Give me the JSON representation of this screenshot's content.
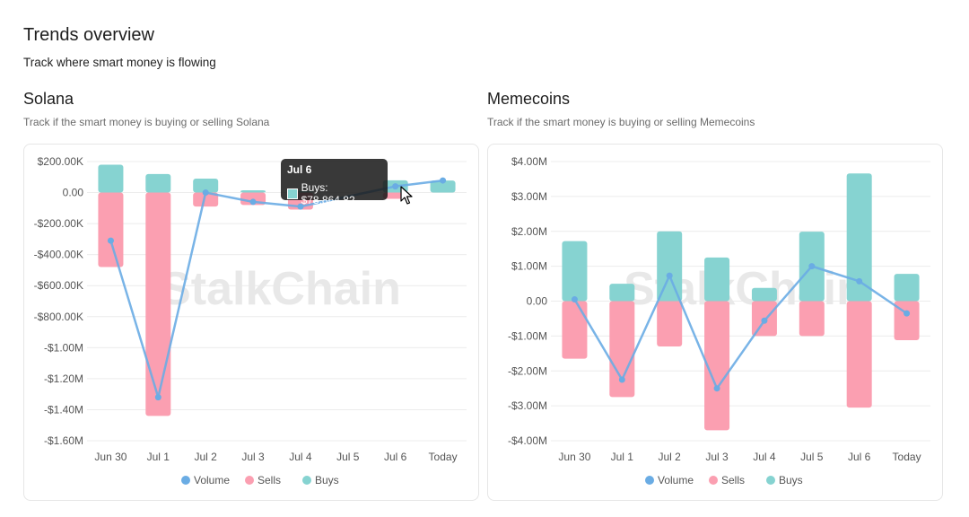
{
  "page": {
    "title": "Trends overview",
    "subtitle": "Track where smart money is flowing"
  },
  "watermark": "StalkChain",
  "colors": {
    "buys": "#86d3d1",
    "sells": "#fb9fb1",
    "volume": "#6aace4"
  },
  "panels": [
    {
      "title": "Solana",
      "subtitle": "Track if the smart money is buying or selling Solana",
      "tooltip": {
        "title": "Jul 6",
        "label": "Buys: $78,864.82"
      }
    },
    {
      "title": "Memecoins",
      "subtitle": "Track if the smart money is buying or selling Memecoins"
    }
  ],
  "chart_data": [
    {
      "type": "bar",
      "stacked": true,
      "categories": [
        "Jun 30",
        "Jul 1",
        "Jul 2",
        "Jul 3",
        "Jul 4",
        "Jul 5",
        "Jul 6",
        "Today"
      ],
      "y_ticks": [
        "$200.00K",
        "0.00",
        "-$200.00K",
        "-$400.00K",
        "-$600.00K",
        "-$800.00K",
        "-$1.00M",
        "-$1.20M",
        "-$1.40M",
        "-$1.60M"
      ],
      "ylim": [
        -1600000,
        200000
      ],
      "series": [
        {
          "name": "Volume",
          "type": "line",
          "values": [
            -310000,
            -1320000,
            0,
            -60000,
            -90000,
            null,
            40000,
            78000
          ]
        },
        {
          "name": "Sells",
          "type": "bar",
          "values": [
            -480000,
            -1440000,
            -90000,
            -80000,
            -110000,
            0,
            -40000,
            0
          ]
        },
        {
          "name": "Buys",
          "type": "bar",
          "values": [
            180000,
            120000,
            90000,
            15000,
            10000,
            0,
            78864.82,
            78000
          ]
        }
      ],
      "legend": "bottom"
    },
    {
      "type": "bar",
      "stacked": true,
      "categories": [
        "Jun 30",
        "Jul 1",
        "Jul 2",
        "Jul 3",
        "Jul 4",
        "Jul 5",
        "Jul 6",
        "Today"
      ],
      "y_ticks": [
        "$4.00M",
        "$3.00M",
        "$2.00M",
        "$1.00M",
        "0.00",
        "-$1.00M",
        "-$2.00M",
        "-$3.00M",
        "-$4.00M"
      ],
      "ylim": [
        -4000000,
        4000000
      ],
      "series": [
        {
          "name": "Volume",
          "type": "line",
          "values": [
            50000,
            -2250000,
            730000,
            -2500000,
            -560000,
            1000000,
            570000,
            -350000
          ]
        },
        {
          "name": "Sells",
          "type": "bar",
          "values": [
            -1650000,
            -2750000,
            -1300000,
            -3700000,
            -1000000,
            -1000000,
            -3050000,
            -1120000
          ]
        },
        {
          "name": "Buys",
          "type": "bar",
          "values": [
            1720000,
            500000,
            2000000,
            1250000,
            380000,
            1990000,
            3660000,
            780000
          ]
        }
      ],
      "legend": "bottom"
    }
  ]
}
